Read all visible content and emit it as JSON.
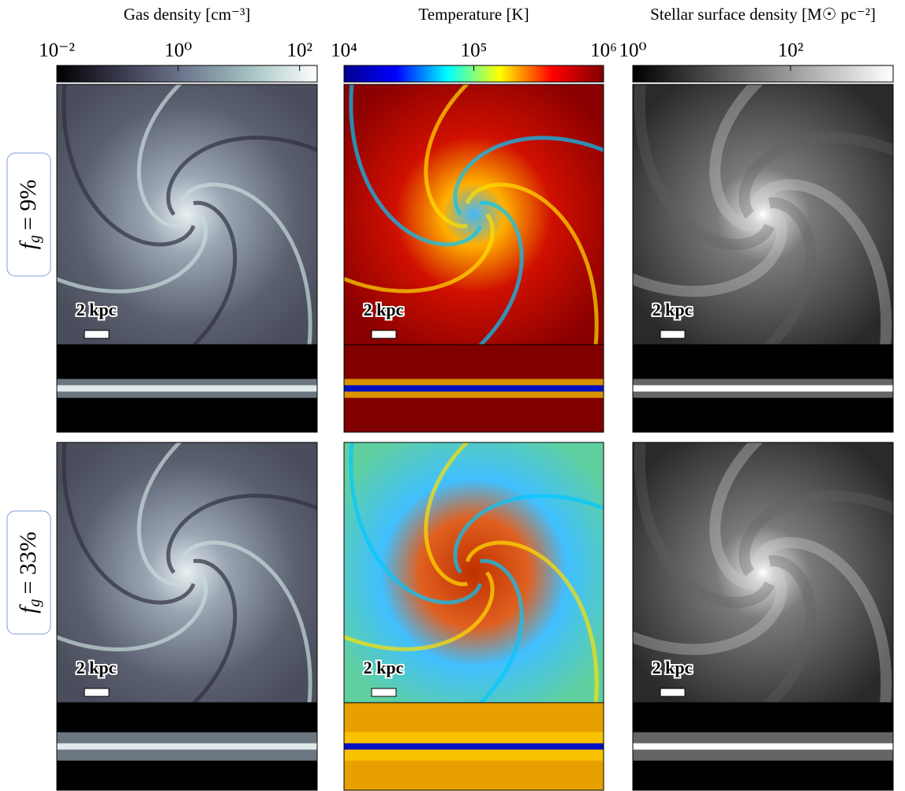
{
  "columns": [
    {
      "title": "Gas density [cm⁻³]",
      "colormap": "bone",
      "clim": [
        0.01,
        195
      ],
      "ticks": [
        {
          "value": 0.01,
          "label": "10⁻²"
        },
        {
          "value": 1,
          "label": "10⁰"
        },
        {
          "value": 100,
          "label": "10²"
        }
      ]
    },
    {
      "title": "Temperature [K]",
      "colormap": "jet",
      "clim": [
        10000,
        1000000
      ],
      "ticks": [
        {
          "value": 10000,
          "label": "10⁴"
        },
        {
          "value": 100000,
          "label": "10⁵"
        },
        {
          "value": 1000000,
          "label": "10⁶"
        }
      ]
    },
    {
      "title": "Stellar surface density [M☉ pc⁻²]",
      "colormap": "greys",
      "clim": [
        1,
        2000
      ],
      "ticks": [
        {
          "value": 1,
          "label": "10⁰"
        },
        {
          "value": 100,
          "label": "10²"
        }
      ]
    }
  ],
  "rows": [
    {
      "symbol": "f",
      "subscript": "g",
      "text": "= 9%"
    },
    {
      "symbol": "f",
      "subscript": "g",
      "text": "= 33%"
    }
  ],
  "scale_bar": "2 kpc"
}
